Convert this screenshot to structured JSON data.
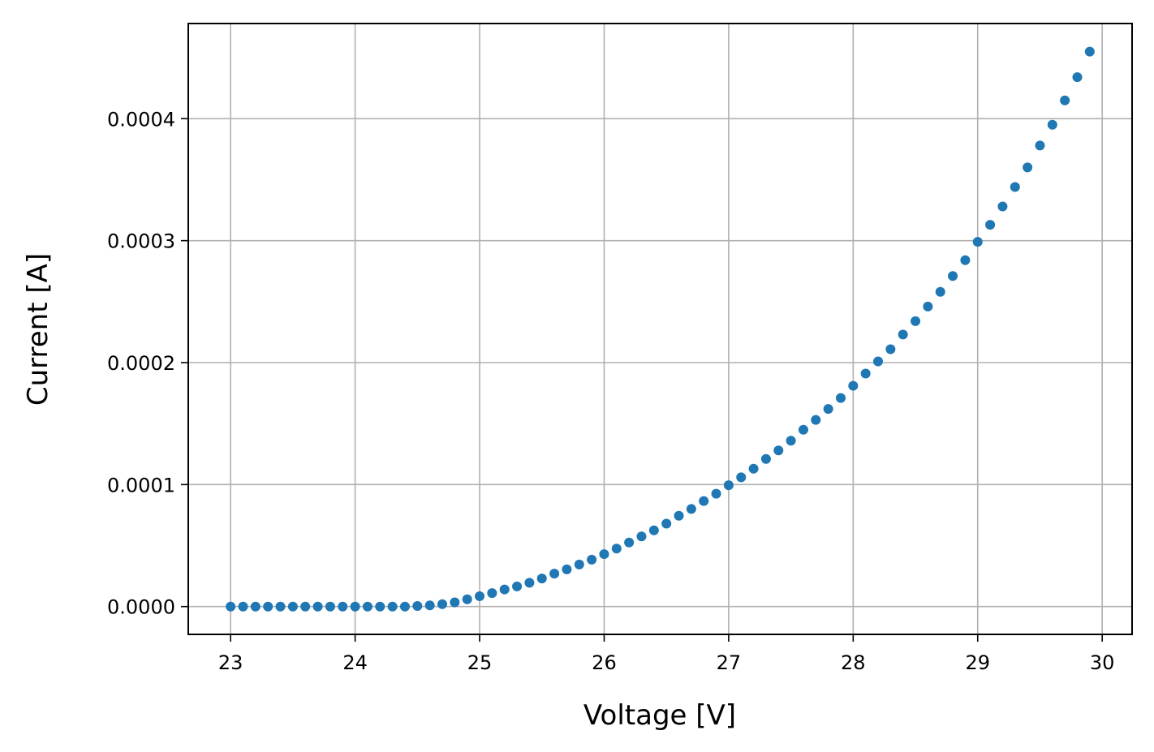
{
  "chart_data": {
    "type": "scatter",
    "title": "",
    "xlabel": "Voltage [V]",
    "ylabel": "Current [A]",
    "xlim": [
      22.66,
      30.24
    ],
    "ylim": [
      -2.28e-05,
      0.000478
    ],
    "xticks": [
      23,
      24,
      25,
      26,
      27,
      28,
      29,
      30
    ],
    "xtick_labels": [
      "23",
      "24",
      "25",
      "26",
      "27",
      "28",
      "29",
      "30"
    ],
    "yticks": [
      0.0,
      0.0001,
      0.0002,
      0.0003,
      0.0004
    ],
    "ytick_labels": [
      "0.0000",
      "0.0001",
      "0.0002",
      "0.0003",
      "0.0004"
    ],
    "grid": true,
    "legend": "none",
    "color": "#1f77b4",
    "series": [
      {
        "x": [
          23.0,
          23.1,
          23.2,
          23.3,
          23.4,
          23.5,
          23.6,
          23.7,
          23.8,
          23.9,
          24.0,
          24.1,
          24.2,
          24.3,
          24.4,
          24.5,
          24.6,
          24.7,
          24.8,
          24.9,
          25.0,
          25.1,
          25.2,
          25.3,
          25.4,
          25.5,
          25.6,
          25.7,
          25.8,
          25.9,
          26.0,
          26.1,
          26.2,
          26.3,
          26.4,
          26.5,
          26.6,
          26.7,
          26.8,
          26.9,
          27.0,
          27.1,
          27.2,
          27.3,
          27.4,
          27.5,
          27.6,
          27.7,
          27.8,
          27.9,
          28.0,
          28.1,
          28.2,
          28.3,
          28.4,
          28.5,
          28.6,
          28.7,
          28.8,
          28.9,
          29.0,
          29.1,
          29.2,
          29.3,
          29.4,
          29.5,
          29.6,
          29.7,
          29.8,
          29.9
        ],
        "y": [
          0.0,
          0.0,
          0.0,
          0.0,
          0.0,
          0.0,
          0.0,
          0.0,
          0.0,
          0.0,
          0.0,
          0.0,
          0.0,
          0.0,
          0.0,
          5e-07,
          1e-06,
          2e-06,
          3.5e-06,
          6e-06,
          8.5e-06,
          1.1e-05,
          1.4e-05,
          1.65e-05,
          1.95e-05,
          2.3e-05,
          2.7e-05,
          3.05e-05,
          3.45e-05,
          3.85e-05,
          4.3e-05,
          4.75e-05,
          5.25e-05,
          5.75e-05,
          6.25e-05,
          6.8e-05,
          7.45e-05,
          8e-05,
          8.65e-05,
          9.25e-05,
          9.95e-05,
          0.000106,
          0.000113,
          0.000121,
          0.000128,
          0.000136,
          0.000145,
          0.000153,
          0.000162,
          0.000171,
          0.000181,
          0.000191,
          0.000201,
          0.000211,
          0.000223,
          0.000234,
          0.000246,
          0.000258,
          0.000271,
          0.000284,
          0.000299,
          0.000313,
          0.000328,
          0.000344,
          0.00036,
          0.000378,
          0.000395,
          0.000415,
          0.000434,
          0.000455
        ]
      }
    ]
  }
}
